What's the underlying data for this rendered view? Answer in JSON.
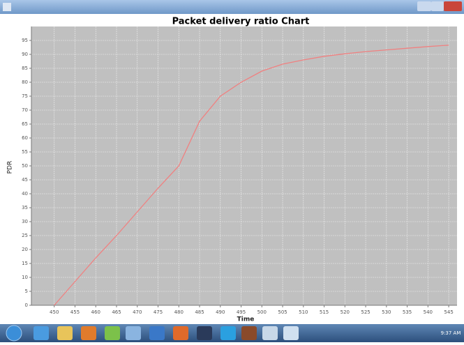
{
  "taskbar": {
    "time": "9:37 AM"
  },
  "chart_data": {
    "type": "line",
    "title": "Packet delivery ratio Chart",
    "x_label": "Time",
    "y_label": "PDR",
    "x": [
      450,
      455,
      460,
      465,
      470,
      475,
      480,
      485,
      490,
      495,
      500,
      505,
      510,
      515,
      520,
      525,
      530,
      535,
      540,
      545
    ],
    "series": [
      {
        "name": "PDR",
        "color": "#f08080",
        "values": [
          0,
          8.5,
          17,
          25,
          33.5,
          42,
          50,
          66,
          75,
          80,
          84,
          86.5,
          88,
          89.3,
          90.2,
          91,
          91.6,
          92.2,
          92.8,
          93.3
        ]
      }
    ],
    "xlim": [
      444.5,
      547
    ],
    "ylim": [
      0,
      100
    ],
    "xticks": [
      450,
      455,
      460,
      465,
      470,
      475,
      480,
      485,
      490,
      495,
      500,
      505,
      510,
      515,
      520,
      525,
      530,
      535,
      540,
      545
    ],
    "yticks": [
      0,
      5,
      10,
      15,
      20,
      25,
      30,
      35,
      40,
      45,
      50,
      55,
      60,
      65,
      70,
      75,
      80,
      85,
      90,
      95
    ],
    "grid": true,
    "background": "#c0c0c0"
  }
}
